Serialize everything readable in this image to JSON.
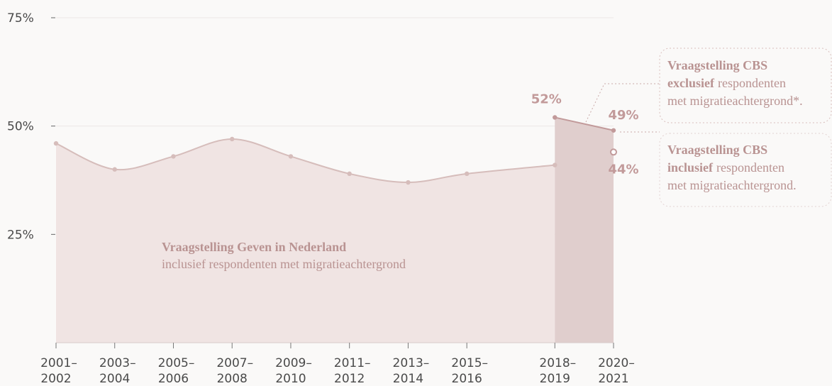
{
  "chart_data": {
    "type": "area",
    "x": [
      2001,
      2003,
      2005,
      2007,
      2009,
      2011,
      2013,
      2015,
      2018,
      2020
    ],
    "xlim": [
      2001,
      2020
    ],
    "xticks": [
      {
        "value": 2001,
        "label": "2001–2002"
      },
      {
        "value": 2003,
        "label": "2003–2004"
      },
      {
        "value": 2005,
        "label": "2005–2006"
      },
      {
        "value": 2007,
        "label": "2007–2008"
      },
      {
        "value": 2009,
        "label": "2009–2010"
      },
      {
        "value": 2011,
        "label": "2011–2012"
      },
      {
        "value": 2013,
        "label": "2013–2014"
      },
      {
        "value": 2015,
        "label": "2015–2016"
      },
      {
        "value": 2018,
        "label": "2018–2019"
      },
      {
        "value": 2020,
        "label": "2020–2021"
      }
    ],
    "ylim": [
      0,
      75
    ],
    "yticks": [
      {
        "value": 25,
        "label": "25%"
      },
      {
        "value": 50,
        "label": "50%"
      },
      {
        "value": 75,
        "label": "75%"
      }
    ],
    "grid": true,
    "series": [
      {
        "color": "#d6bdbb",
        "fill": "#f0e4e3",
        "smooth": true,
        "values": [
          46,
          40,
          43,
          47,
          43,
          39,
          37,
          39,
          41,
          null
        ]
      },
      {
        "color": "#c29a9a",
        "fill": "#e0cecd",
        "smooth": false,
        "values": [
          null,
          null,
          null,
          null,
          null,
          null,
          null,
          null,
          52,
          49
        ],
        "value_labels": [
          null,
          null,
          null,
          null,
          null,
          null,
          null,
          null,
          "52%",
          "49%"
        ]
      },
      {
        "color": "#c29a9a",
        "hollow": true,
        "values": [
          null,
          null,
          null,
          null,
          null,
          null,
          null,
          null,
          null,
          44
        ],
        "value_labels": [
          null,
          null,
          null,
          null,
          null,
          null,
          null,
          null,
          null,
          "44%"
        ]
      }
    ],
    "annotations": [
      {
        "lines": [
          [
            {
              "text": "Vraagstelling Geven in Nederland",
              "bold": true
            }
          ],
          [
            {
              "text": "inclusief respondenten met migratieachtergrond",
              "bold": false
            }
          ]
        ]
      },
      {
        "lines": [
          [
            {
              "text": "Vraagstelling CBS",
              "bold": true
            }
          ],
          [
            {
              "text": "exclusief",
              "bold": true
            },
            {
              "text": "respondenten",
              "bold": false
            }
          ],
          [
            {
              "text": "met migratieachtergrond*.",
              "bold": false
            }
          ]
        ]
      },
      {
        "lines": [
          [
            {
              "text": "Vraagstelling CBS",
              "bold": true
            }
          ],
          [
            {
              "text": "inclusief",
              "bold": true
            },
            {
              "text": "respondenten",
              "bold": false
            }
          ],
          [
            {
              "text": "met migratieachtergrond.",
              "bold": false
            }
          ]
        ]
      }
    ]
  }
}
